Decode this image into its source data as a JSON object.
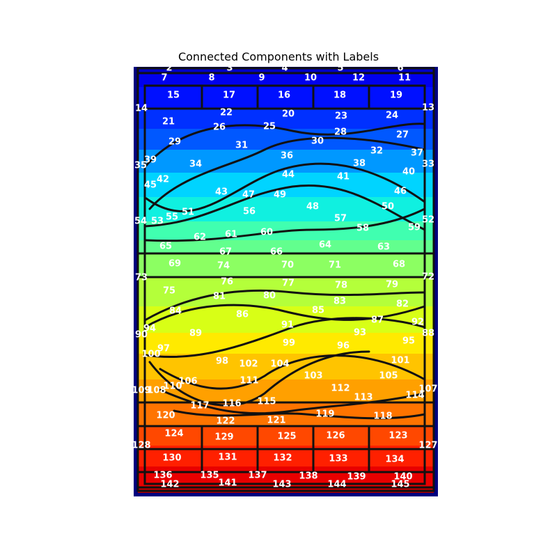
{
  "title": "Connected Components with Labels",
  "colors": {
    "frame": "#00007f",
    "outline": "#111111",
    "label": "#ffffff",
    "rows": [
      "#0000c8",
      "#0000ee",
      "#0010ff",
      "#0030ff",
      "#0058ff",
      "#0098ff",
      "#00d4ff",
      "#10f0e0",
      "#40ffb0",
      "#62ff8e",
      "#8cff62",
      "#b4ff3a",
      "#d8ff16",
      "#ffea00",
      "#ffc400",
      "#ffa000",
      "#ff7400",
      "#ff4800",
      "#ff2000",
      "#e80000",
      "#c80000",
      "#a80000"
    ]
  },
  "components": [
    {
      "id": "2",
      "row": 0
    },
    {
      "id": "3",
      "row": 0
    },
    {
      "id": "4",
      "row": 0
    },
    {
      "id": "5",
      "row": 0
    },
    {
      "id": "6",
      "row": 0
    },
    {
      "id": "7",
      "row": 1
    },
    {
      "id": "8",
      "row": 1
    },
    {
      "id": "9",
      "row": 1
    },
    {
      "id": "10",
      "row": 1
    },
    {
      "id": "12",
      "row": 1
    },
    {
      "id": "11",
      "row": 1
    },
    {
      "id": "14",
      "row": 2
    },
    {
      "id": "15",
      "row": 2
    },
    {
      "id": "17",
      "row": 2
    },
    {
      "id": "16",
      "row": 2
    },
    {
      "id": "18",
      "row": 2
    },
    {
      "id": "19",
      "row": 2
    },
    {
      "id": "13",
      "row": 2
    },
    {
      "id": "21",
      "row": 3
    },
    {
      "id": "22",
      "row": 3
    },
    {
      "id": "20",
      "row": 3
    },
    {
      "id": "23",
      "row": 3
    },
    {
      "id": "24",
      "row": 3
    },
    {
      "id": "26",
      "row": 3
    },
    {
      "id": "25",
      "row": 3
    },
    {
      "id": "28",
      "row": 3
    },
    {
      "id": "27",
      "row": 3
    },
    {
      "id": "29",
      "row": 4
    },
    {
      "id": "31",
      "row": 4
    },
    {
      "id": "30",
      "row": 4
    },
    {
      "id": "32",
      "row": 4
    },
    {
      "id": "37",
      "row": 4
    },
    {
      "id": "39",
      "row": 4
    },
    {
      "id": "36",
      "row": 4
    },
    {
      "id": "38",
      "row": 4
    },
    {
      "id": "35",
      "row": 5
    },
    {
      "id": "34",
      "row": 5
    },
    {
      "id": "40",
      "row": 5
    },
    {
      "id": "33",
      "row": 5
    },
    {
      "id": "42",
      "row": 5
    },
    {
      "id": "44",
      "row": 5
    },
    {
      "id": "41",
      "row": 5
    },
    {
      "id": "45",
      "row": 5
    },
    {
      "id": "43",
      "row": 5
    },
    {
      "id": "47",
      "row": 6
    },
    {
      "id": "49",
      "row": 6
    },
    {
      "id": "46",
      "row": 6
    },
    {
      "id": "48",
      "row": 6
    },
    {
      "id": "50",
      "row": 6
    },
    {
      "id": "56",
      "row": 7
    },
    {
      "id": "51",
      "row": 7
    },
    {
      "id": "55",
      "row": 7
    },
    {
      "id": "54",
      "row": 7
    },
    {
      "id": "53",
      "row": 7
    },
    {
      "id": "57",
      "row": 7
    },
    {
      "id": "52",
      "row": 7
    },
    {
      "id": "59",
      "row": 7
    },
    {
      "id": "58",
      "row": 7
    },
    {
      "id": "62",
      "row": 8
    },
    {
      "id": "61",
      "row": 8
    },
    {
      "id": "60",
      "row": 8
    },
    {
      "id": "65",
      "row": 8
    },
    {
      "id": "64",
      "row": 8
    },
    {
      "id": "63",
      "row": 8
    },
    {
      "id": "67",
      "row": 9
    },
    {
      "id": "66",
      "row": 9
    },
    {
      "id": "69",
      "row": 9
    },
    {
      "id": "74",
      "row": 9
    },
    {
      "id": "70",
      "row": 9
    },
    {
      "id": "71",
      "row": 9
    },
    {
      "id": "68",
      "row": 9
    },
    {
      "id": "73",
      "row": 10
    },
    {
      "id": "72",
      "row": 10
    },
    {
      "id": "75",
      "row": 10
    },
    {
      "id": "76",
      "row": 10
    },
    {
      "id": "77",
      "row": 10
    },
    {
      "id": "78",
      "row": 10
    },
    {
      "id": "79",
      "row": 10
    },
    {
      "id": "81",
      "row": 11
    },
    {
      "id": "80",
      "row": 11
    },
    {
      "id": "84",
      "row": 11
    },
    {
      "id": "86",
      "row": 11
    },
    {
      "id": "85",
      "row": 11
    },
    {
      "id": "83",
      "row": 11
    },
    {
      "id": "82",
      "row": 11
    },
    {
      "id": "87",
      "row": 11
    },
    {
      "id": "91",
      "row": 12
    },
    {
      "id": "94",
      "row": 12
    },
    {
      "id": "90",
      "row": 12
    },
    {
      "id": "89",
      "row": 12
    },
    {
      "id": "93",
      "row": 12
    },
    {
      "id": "92",
      "row": 12
    },
    {
      "id": "88",
      "row": 12
    },
    {
      "id": "97",
      "row": 13
    },
    {
      "id": "99",
      "row": 13
    },
    {
      "id": "96",
      "row": 13
    },
    {
      "id": "95",
      "row": 13
    },
    {
      "id": "100",
      "row": 13
    },
    {
      "id": "98",
      "row": 14
    },
    {
      "id": "102",
      "row": 14
    },
    {
      "id": "104",
      "row": 14
    },
    {
      "id": "101",
      "row": 14
    },
    {
      "id": "103",
      "row": 14
    },
    {
      "id": "105",
      "row": 14
    },
    {
      "id": "106",
      "row": 15
    },
    {
      "id": "110",
      "row": 15
    },
    {
      "id": "109",
      "row": 15
    },
    {
      "id": "108",
      "row": 15
    },
    {
      "id": "111",
      "row": 15
    },
    {
      "id": "107",
      "row": 15
    },
    {
      "id": "112",
      "row": 15
    },
    {
      "id": "113",
      "row": 16
    },
    {
      "id": "114",
      "row": 16
    },
    {
      "id": "117",
      "row": 16
    },
    {
      "id": "116",
      "row": 16
    },
    {
      "id": "115",
      "row": 16
    },
    {
      "id": "120",
      "row": 17
    },
    {
      "id": "122",
      "row": 17
    },
    {
      "id": "121",
      "row": 17
    },
    {
      "id": "119",
      "row": 17
    },
    {
      "id": "118",
      "row": 17
    },
    {
      "id": "124",
      "row": 18
    },
    {
      "id": "128",
      "row": 18
    },
    {
      "id": "129",
      "row": 18
    },
    {
      "id": "125",
      "row": 18
    },
    {
      "id": "126",
      "row": 18
    },
    {
      "id": "123",
      "row": 18
    },
    {
      "id": "127",
      "row": 18
    },
    {
      "id": "130",
      "row": 19
    },
    {
      "id": "131",
      "row": 19
    },
    {
      "id": "132",
      "row": 19
    },
    {
      "id": "133",
      "row": 19
    },
    {
      "id": "134",
      "row": 19
    },
    {
      "id": "136",
      "row": 20
    },
    {
      "id": "135",
      "row": 20
    },
    {
      "id": "137",
      "row": 20
    },
    {
      "id": "138",
      "row": 20
    },
    {
      "id": "139",
      "row": 20
    },
    {
      "id": "140",
      "row": 20
    },
    {
      "id": "142",
      "row": 21
    },
    {
      "id": "141",
      "row": 21
    },
    {
      "id": "143",
      "row": 21
    },
    {
      "id": "144",
      "row": 21
    },
    {
      "id": "145",
      "row": 21
    }
  ]
}
